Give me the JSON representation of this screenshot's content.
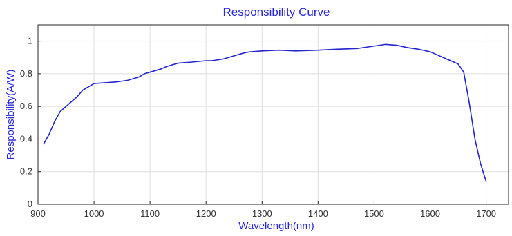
{
  "chart_data": {
    "type": "line",
    "title": "Responsibility Curve",
    "xlabel": "Wavelength(nm)",
    "ylabel": "Responsibility(A/W)",
    "xlim": [
      900,
      1740
    ],
    "ylim": [
      0,
      1.1
    ],
    "xticks": [
      900,
      1000,
      1100,
      1200,
      1300,
      1400,
      1500,
      1600,
      1700
    ],
    "yticks": [
      0,
      0.2,
      0.4,
      0.6,
      0.8,
      1
    ],
    "xtick_labels": [
      "900",
      "1000",
      "1100",
      "1200",
      "1300",
      "1400",
      "1500",
      "1600",
      "1700"
    ],
    "ytick_labels": [
      "0",
      "0.2",
      "0.4",
      "0.6",
      "0.8",
      "1"
    ],
    "grid": true,
    "series": [
      {
        "x": [
          910,
          920,
          930,
          940,
          950,
          960,
          970,
          980,
          990,
          1000,
          1020,
          1040,
          1060,
          1080,
          1090,
          1100,
          1110,
          1120,
          1130,
          1150,
          1170,
          1200,
          1210,
          1230,
          1250,
          1270,
          1280,
          1300,
          1330,
          1360,
          1400,
          1430,
          1470,
          1500,
          1520,
          1540,
          1560,
          1580,
          1600,
          1610,
          1630,
          1650,
          1660,
          1670,
          1680,
          1690,
          1700
        ],
        "y": [
          0.37,
          0.43,
          0.51,
          0.57,
          0.6,
          0.63,
          0.66,
          0.7,
          0.72,
          0.74,
          0.745,
          0.75,
          0.76,
          0.78,
          0.8,
          0.81,
          0.82,
          0.83,
          0.845,
          0.865,
          0.87,
          0.88,
          0.88,
          0.89,
          0.91,
          0.93,
          0.935,
          0.94,
          0.945,
          0.94,
          0.945,
          0.95,
          0.955,
          0.97,
          0.98,
          0.975,
          0.96,
          0.95,
          0.935,
          0.92,
          0.89,
          0.86,
          0.81,
          0.62,
          0.4,
          0.25,
          0.14
        ],
        "color": "#2424cc"
      }
    ]
  }
}
